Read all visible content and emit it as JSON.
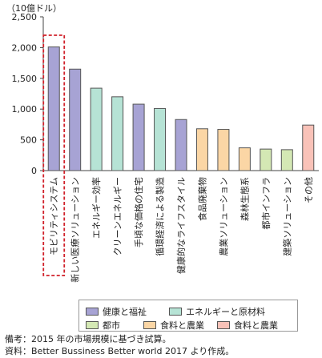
{
  "chart_data": {
    "type": "bar",
    "unit_label": "（10億ドル）",
    "ylim": [
      0,
      2500
    ],
    "yticks": [
      "0",
      "500",
      "1,000",
      "1,500",
      "2,000",
      "2,500"
    ],
    "categories": [
      "モビリティシステム",
      "新しい医療ソリューション",
      "エネルギー効率",
      "クリーンエネルギー",
      "手頃な価格の住宅",
      "循環経済による製造",
      "健康的なライフスタイル",
      "食品廃棄物",
      "農業ソリューション",
      "森林生態系",
      "都市インフラ",
      "建築ソリューション",
      "その他"
    ],
    "values": [
      2010,
      1650,
      1340,
      1200,
      1080,
      1010,
      830,
      680,
      670,
      370,
      350,
      340,
      740
    ],
    "bar_groups": [
      0,
      0,
      1,
      1,
      0,
      1,
      0,
      3,
      3,
      3,
      2,
      2,
      4
    ],
    "highlighted_index": 0,
    "grid": false
  },
  "legend": [
    {
      "label": "健康と福祉",
      "color": "#a7a3d4"
    },
    {
      "label": "エネルギーと原材料",
      "color": "#b6e3d5"
    },
    {
      "label": "都市",
      "color": "#d4e8b4"
    },
    {
      "label": "食料と農業",
      "color": "#fbd6a5"
    },
    {
      "label": "食料と農業",
      "color": "#f9c2b8"
    }
  ],
  "notes": [
    "備考：2015 年の市場規模に基づき試算。",
    "資料：Better Bussiness Better world 2017 より作成。"
  ]
}
